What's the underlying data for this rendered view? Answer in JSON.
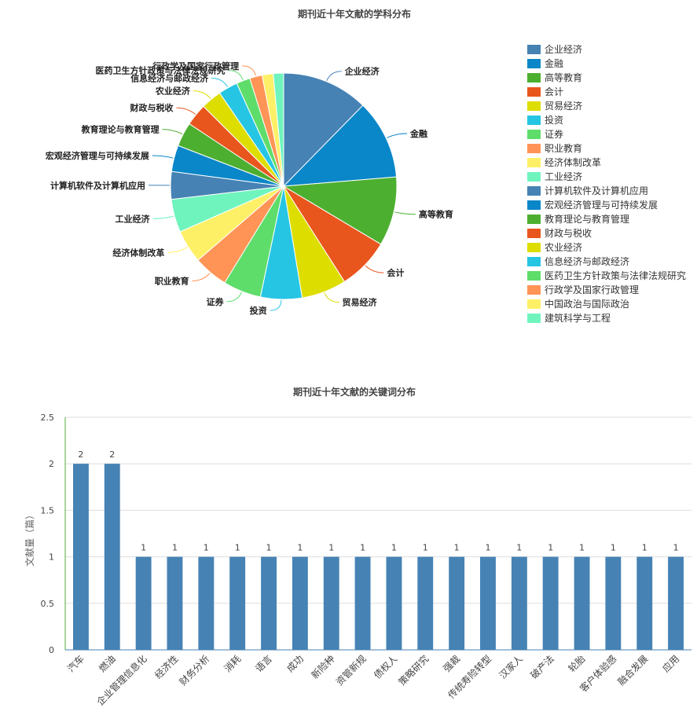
{
  "chart_data": [
    {
      "type": "pie",
      "title": "期刊近十年文献的学科分布",
      "legend_position": "right",
      "categories": [
        "企业经济",
        "金融",
        "高等教育",
        "会计",
        "贸易经济",
        "投资",
        "证券",
        "职业教育",
        "经济体制改革",
        "工业经济",
        "计算机软件及计算机应用",
        "宏观经济管理与可持续发展",
        "教育理论与教育管理",
        "财政与税收",
        "农业经济",
        "信息经济与邮政经济",
        "医药卫生方针政策与法律法规研究",
        "行政学及国家行政管理",
        "中国政治与国际政治",
        "建筑科学与工程"
      ],
      "values": [
        12.5,
        11.5,
        10,
        7.5,
        6.5,
        6,
        5.5,
        5,
        4.8,
        4.8,
        4,
        3.8,
        3.5,
        3.2,
        3,
        2.8,
        2,
        1.8,
        1.6,
        1.5
      ],
      "colors": [
        "#4682b4",
        "#0a87c8",
        "#4daf30",
        "#e8561e",
        "#dddd00",
        "#26c5e4",
        "#5fdd6a",
        "#ff9456",
        "#fdf066",
        "#6ff4be",
        "#4682b4",
        "#0a87c8",
        "#4daf30",
        "#e8561e",
        "#dddd00",
        "#26c5e4",
        "#5fdd6a",
        "#ff9456",
        "#fdf066",
        "#6ff4be"
      ],
      "slice_labels": [
        "企业经济",
        "金融",
        "高等教育",
        "会计",
        "贸易经济",
        "投资",
        "证券",
        "职业教育",
        "经济体制改革",
        "工业经济",
        "计算机软件及计算机应用",
        "宏观经济管理与可持续发展",
        "教育理论与教育管理",
        "财政与税收",
        "农业经济",
        "信息经济与邮政经济",
        "医药卫生方针政策与法律法规研究",
        "行政学及国家行政管理",
        "",
        ""
      ]
    },
    {
      "type": "bar",
      "title": "期刊近十年文献的关键词分布",
      "ylabel": "文献量（篇）",
      "xlabel": "",
      "ylim": [
        0,
        2.5
      ],
      "yticks": [
        0,
        0.5,
        1,
        1.5,
        2,
        2.5
      ],
      "ytick_labels": [
        "0",
        "0.5",
        "1",
        "1.5",
        "2",
        "2.5"
      ],
      "grid": true,
      "bar_color": "#4682b4",
      "categories": [
        "汽车",
        "燃油",
        "企业管理信息化",
        "经济性",
        "财务分析",
        "消耗",
        "语言",
        "成功",
        "新险种",
        "资管新规",
        "债权人",
        "策略研究",
        "强裁",
        "传统寿险转型",
        "汉家人",
        "破产法",
        "轮胎",
        "客户体验感",
        "融合发展",
        "应用"
      ],
      "values": [
        2,
        2,
        1,
        1,
        1,
        1,
        1,
        1,
        1,
        1,
        1,
        1,
        1,
        1,
        1,
        1,
        1,
        1,
        1,
        1
      ]
    }
  ]
}
